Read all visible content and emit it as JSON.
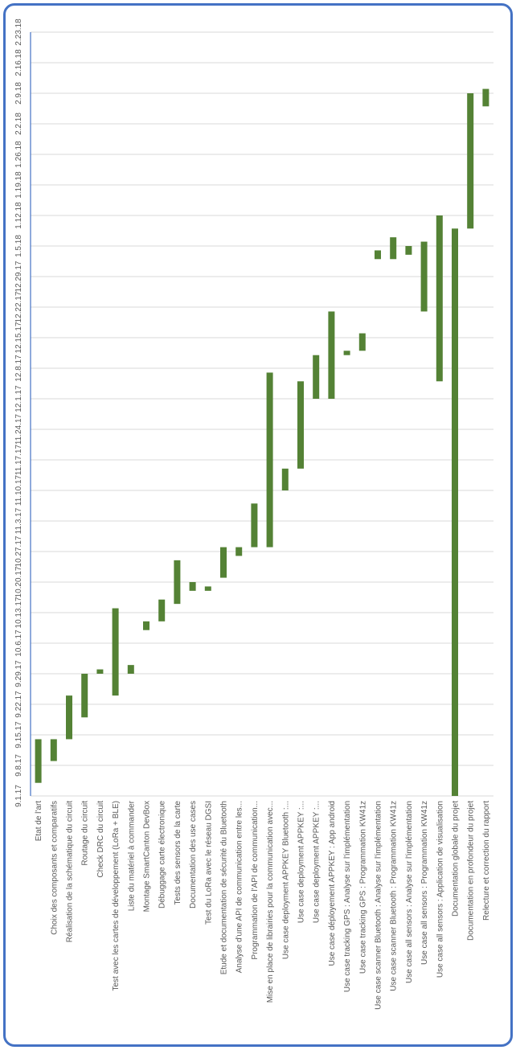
{
  "chart_data": {
    "type": "bar",
    "orientation": "horizontal-gantt",
    "bar_color": "#548235",
    "gridline_color": "#d9d9d9",
    "border_color": "#4472c4",
    "grid": true,
    "date_ticks": [
      "9.1.17",
      "9.8.17",
      "9.15.17",
      "9.22.17",
      "9.29.17",
      "10.6.17",
      "10.13.17",
      "10.20.17",
      "10.27.17",
      "11.3.17",
      "11.10.17",
      "11.17.17",
      "11.24.17",
      "12.1.17",
      "12.8.17",
      "12.15.17",
      "12.22.17",
      "12.29.17",
      "1.5.18",
      "1.12.18",
      "1.19.18",
      "1.26.18",
      "2.2.18",
      "2.9.18",
      "2.16.18",
      "2.23.18"
    ],
    "tasks": [
      {
        "name": "Etat de l'art",
        "start": "9.4.17",
        "end": "9.14.17"
      },
      {
        "name": "Choix des composants et comparatifs",
        "start": "9.9.17",
        "end": "9.14.17"
      },
      {
        "name": "Réalisation de la schématique du circuit",
        "start": "9.14.17",
        "end": "9.24.17"
      },
      {
        "name": "Routage du circuit",
        "start": "9.19.17",
        "end": "9.29.17"
      },
      {
        "name": "Check DRC du circuit",
        "start": "9.29.17",
        "end": "9.30.17"
      },
      {
        "name": "Test avec les cartes de développement (LoRa + BLE)",
        "start": "9.24.17",
        "end": "10.14.17"
      },
      {
        "name": "Liste du matériel à commander",
        "start": "9.29.17",
        "end": "10.1.17"
      },
      {
        "name": "Montage SmartCanton DevBox",
        "start": "10.9.17",
        "end": "10.11.17"
      },
      {
        "name": "Débuggage carte électronique",
        "start": "10.11.17",
        "end": "10.16.17"
      },
      {
        "name": "Tests des sensors de la carte",
        "start": "10.15.17",
        "end": "10.25.17"
      },
      {
        "name": "Documentation des use cases",
        "start": "10.18.17",
        "end": "10.20.17"
      },
      {
        "name": "Test du LoRa avec le réseau DGSI",
        "start": "10.18.17",
        "end": "10.19.17"
      },
      {
        "name": "Etude et documentation de sécurité du Bluetooth",
        "start": "10.21.17",
        "end": "10.28.17"
      },
      {
        "name": "Analyse d'une API de communication entre les...",
        "start": "10.26.17",
        "end": "10.28.17"
      },
      {
        "name": "Programmation de l'API de communication...",
        "start": "10.28.17",
        "end": "11.7.17"
      },
      {
        "name": "Mise en place de librairies pour la communication avec...",
        "start": "10.28.17",
        "end": "12.7.17"
      },
      {
        "name": "Use case deployment APPKEY Bluetooth :...",
        "start": "11.10.17",
        "end": "11.15.17"
      },
      {
        "name": "Use case deployment APPKEY :...",
        "start": "11.15.17",
        "end": "12.5.17"
      },
      {
        "name": "Use case deployment APPKEY :...",
        "start": "12.1.17",
        "end": "12.11.17"
      },
      {
        "name": "Use case déployement APPKEY : App android",
        "start": "12.1.17",
        "end": "12.21.17"
      },
      {
        "name": "Use case tracking GPS : Analyse sur l'implémentation",
        "start": "12.11.17",
        "end": "12.12.17"
      },
      {
        "name": "Use case tracking GPS : Programmation KW41z",
        "start": "12.12.17",
        "end": "12.16.17"
      },
      {
        "name": "Use case scanner Bluetooth : Analyse sur l'implémentation",
        "start": "1.2.18",
        "end": "1.4.18"
      },
      {
        "name": "Use case scanner Bluetooth : Programmation KW41z",
        "start": "1.2.18",
        "end": "1.7.18"
      },
      {
        "name": "Use case all sensors : Analyse sur l'implémentation",
        "start": "1.3.18",
        "end": "1.5.18"
      },
      {
        "name": "Use case all sensors : Programmation KW41z",
        "start": "12.21.17",
        "end": "1.6.18"
      },
      {
        "name": "Use case all sensors : Application de visualisation",
        "start": "12.5.17",
        "end": "1.12.18"
      },
      {
        "name": "Documentation globale du projet",
        "start": "9.1.17",
        "end": "1.9.18"
      },
      {
        "name": "Documentation en profondeur du projet",
        "start": "1.9.18",
        "end": "2.9.18"
      },
      {
        "name": "Relecture et correction du rapport",
        "start": "2.6.18",
        "end": "2.10.18"
      }
    ]
  }
}
